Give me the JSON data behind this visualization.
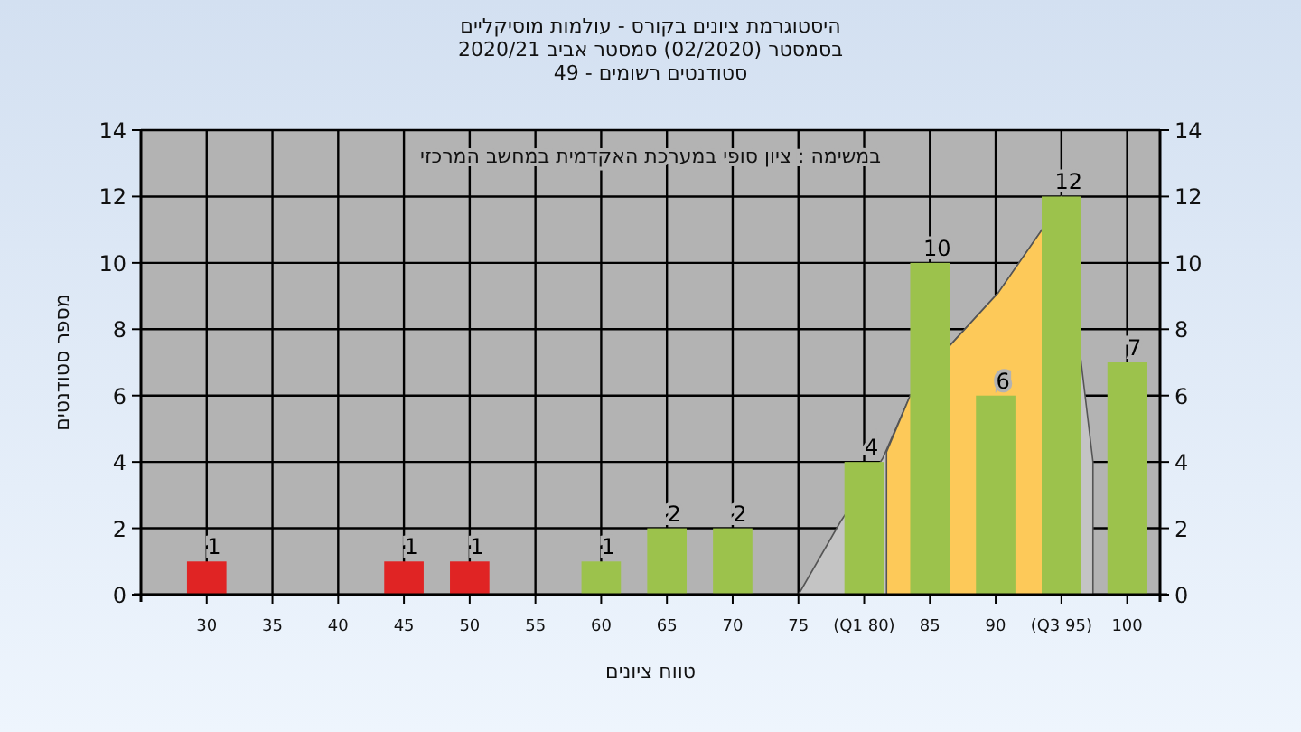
{
  "chart_data": {
    "type": "bar",
    "title": "היסטוגרמת ציונים בקורס - עולמות מוסיקליים",
    "subtitle": "בסמסטר  (02/2020)  סמסטר אביב 2020/21\nסטודנטים רשומים - 49",
    "xlabel": "טווח ציונים",
    "ylabel": "מספר סטודנטים",
    "annotations": [
      "במשימה : ציון סופי במערכת האקדמית במחשב המרכזי"
    ],
    "x": [
      30,
      35,
      40,
      45,
      50,
      55,
      60,
      65,
      70,
      75,
      80,
      85,
      90,
      95,
      100
    ],
    "series": [
      {
        "type": "area",
        "color": "#c4c4c4",
        "x": [
          75,
          78.2,
          81.4,
          83.5,
          86.5,
          90.2,
          93.7,
          95,
          97.4
        ],
        "values": [
          0,
          2.2,
          4.1,
          6.0,
          7.5,
          9.1,
          11.1,
          12,
          4
        ]
      },
      {
        "type": "area",
        "color": "#fdc959",
        "x": [
          81.7,
          83.5,
          86.5,
          90.2,
          93.7,
          95
        ],
        "values": [
          4.3,
          6.0,
          7.5,
          9.1,
          11.1,
          12
        ]
      },
      {
        "values": [
          1,
          0,
          0,
          1,
          1,
          0,
          1,
          2,
          2,
          0,
          4,
          10,
          6,
          12,
          7
        ],
        "colors": [
          "#e02424",
          "#e02424",
          "#e02424",
          "#e02424",
          "#e02424",
          "#9cc24c",
          "#9cc24c",
          "#9cc24c",
          "#9cc24c",
          "#9cc24c",
          "#9cc24c",
          "#9cc24c",
          "#9cc24c",
          "#9cc24c",
          "#9cc24c"
        ],
        "value_labels": [
          "1",
          null,
          null,
          "1",
          "1",
          null,
          "1",
          "2",
          "2",
          null,
          "4",
          "10",
          "6",
          "12",
          "7"
        ]
      }
    ],
    "xlim": [
      25,
      102.5
    ],
    "xticks": [
      30,
      35,
      40,
      45,
      50,
      55,
      60,
      65,
      70,
      75,
      {
        "value": 80,
        "label": "(Q1 80)"
      },
      85,
      90,
      {
        "value": 95,
        "label": "(Q3 95)"
      },
      100
    ],
    "ylim": [
      0,
      14
    ],
    "yticks": [
      0,
      2,
      4,
      6,
      8,
      10,
      12,
      14
    ],
    "y2lim": [
      0,
      14
    ],
    "y2ticks": [
      0,
      2,
      4,
      6,
      8,
      10,
      12,
      14
    ],
    "grid": true
  }
}
